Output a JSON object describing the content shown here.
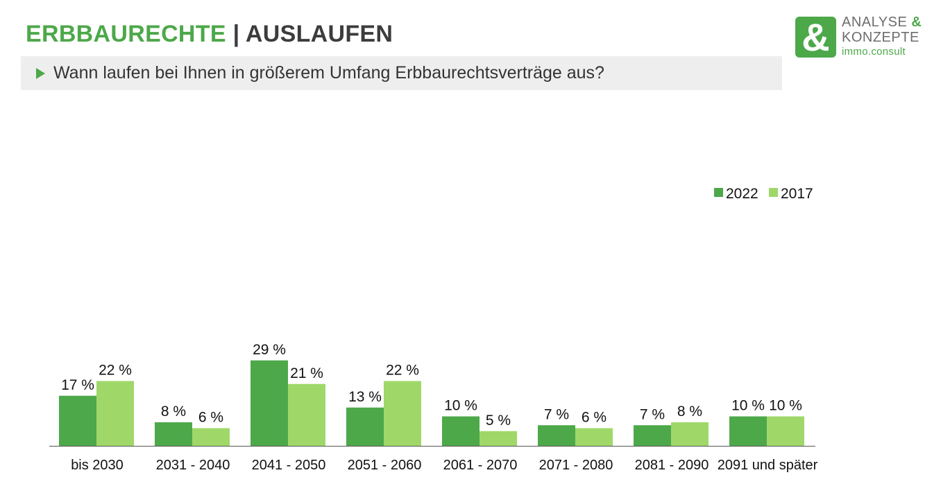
{
  "header": {
    "title_part1": "ERBBAURECHTE",
    "title_part2": " | AUSLAUFEN",
    "subtitle": "Wann laufen bei Ihnen in größerem Umfang Erbbaurechtsverträge aus?"
  },
  "logo": {
    "symbol": "&",
    "line1": "ANALYSE",
    "line1_amp": "&",
    "line2": "KONZEPTE",
    "line3": "immo.consult"
  },
  "colors": {
    "accent": "#4da84a",
    "series_2022": "#4da84a",
    "series_2017": "#9fd869",
    "subtitle_bg": "#eeeeee"
  },
  "chart_data": {
    "type": "bar",
    "title": "",
    "xlabel": "",
    "ylabel": "",
    "ylim": [
      0,
      35
    ],
    "grid": false,
    "legend_position": "top-right",
    "categories": [
      "bis 2030",
      "2031 - 2040",
      "2041 - 2050",
      "2051 - 2060",
      "2061 - 2070",
      "2071 - 2080",
      "2081 - 2090",
      "2091 und später"
    ],
    "series": [
      {
        "name": "2022",
        "color": "#4da84a",
        "values": [
          17,
          8,
          29,
          13,
          10,
          7,
          7,
          10
        ],
        "labels": [
          "17 %",
          "8 %",
          "29 %",
          "13 %",
          "10 %",
          "7 %",
          "7 %",
          "10 %"
        ]
      },
      {
        "name": "2017",
        "color": "#9fd869",
        "values": [
          22,
          6,
          21,
          22,
          5,
          6,
          8,
          10
        ],
        "labels": [
          "22 %",
          "6 %",
          "21 %",
          "22 %",
          "5 %",
          "6 %",
          "8 %",
          "10 %"
        ]
      }
    ]
  }
}
